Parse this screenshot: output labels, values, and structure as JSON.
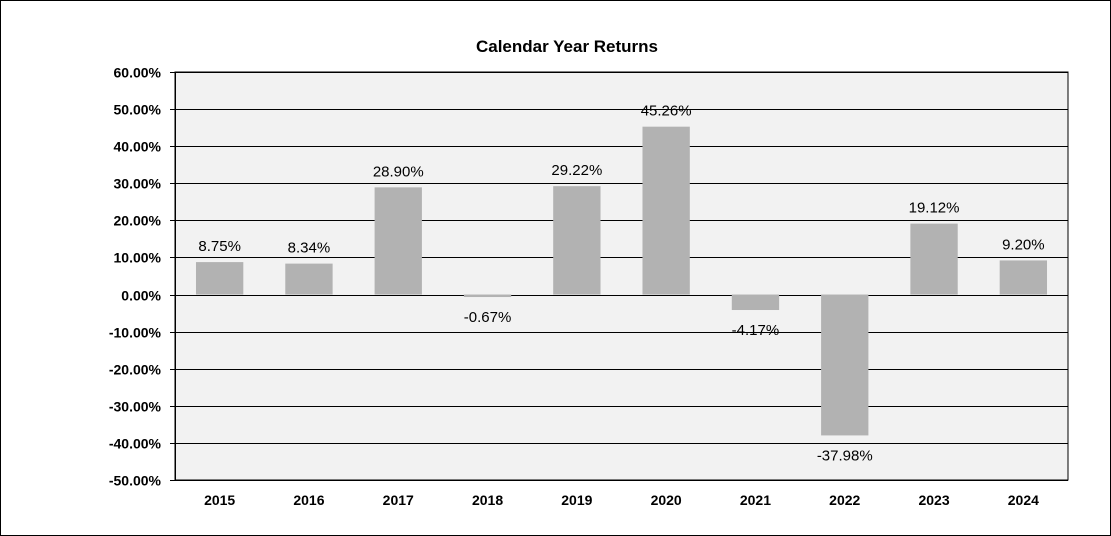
{
  "chart_data": {
    "type": "bar",
    "title": "Calendar Year Returns",
    "xlabel": "",
    "ylabel": "",
    "categories": [
      "2015",
      "2016",
      "2017",
      "2018",
      "2019",
      "2020",
      "2021",
      "2022",
      "2023",
      "2024"
    ],
    "values": [
      8.75,
      8.34,
      28.9,
      -0.67,
      29.22,
      45.26,
      -4.17,
      -37.98,
      19.12,
      9.2
    ],
    "data_labels": [
      "8.75%",
      "8.34%",
      "28.90%",
      "-0.67%",
      "29.22%",
      "45.26%",
      "-4.17%",
      "-37.98%",
      "19.12%",
      "9.20%"
    ],
    "ylim": [
      -50,
      60
    ],
    "yticks": [
      60,
      50,
      40,
      30,
      20,
      10,
      0,
      -10,
      -20,
      -30,
      -40,
      -50
    ],
    "ytick_labels": [
      "60.00%",
      "50.00%",
      "40.00%",
      "30.00%",
      "20.00%",
      "10.00%",
      "0.00%",
      "-10.00%",
      "-20.00%",
      "-30.00%",
      "-40.00%",
      "-50.00%"
    ],
    "grid": true,
    "legend": "none",
    "colors": {
      "bar": "#b2b2b2",
      "plot_bg": "#f2f2f2",
      "gridline": "#000000",
      "frame": "#000000"
    }
  }
}
